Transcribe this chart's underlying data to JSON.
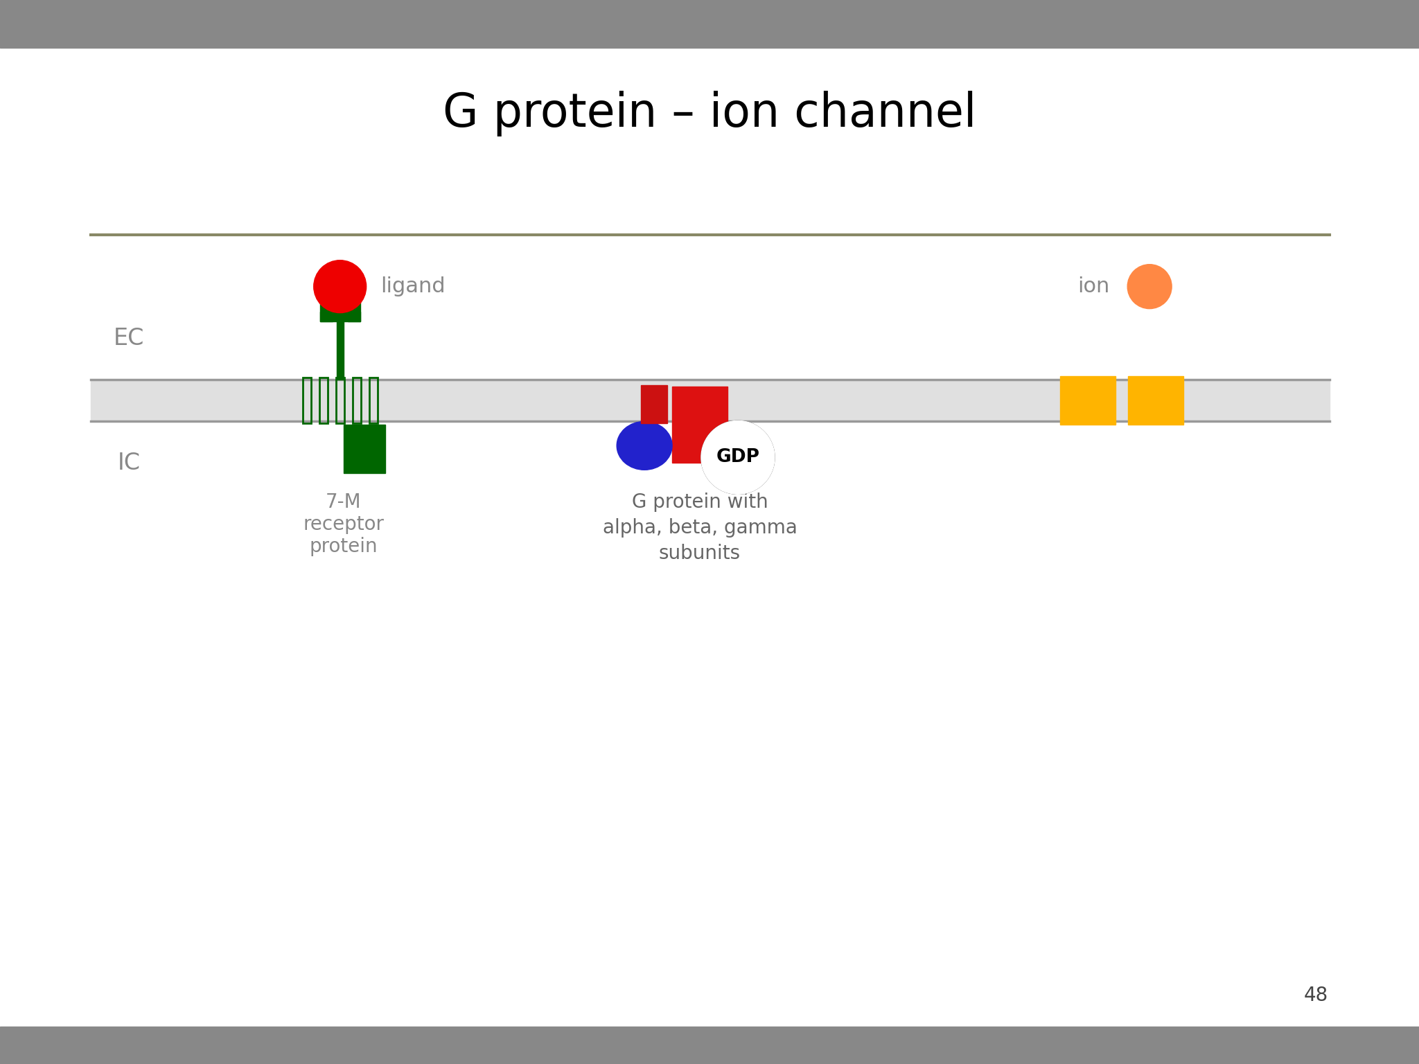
{
  "title": "G protein – ion channel",
  "title_fontsize": 48,
  "bg_color": "#FAFAF5",
  "content_bg": "#FEFEFE",
  "header_color": "#888888",
  "footer_color": "#888888",
  "border_line_color": "#888866",
  "membrane_color": "#E0E0E0",
  "membrane_border_color": "#999999",
  "ec_label": "EC",
  "ic_label": "IC",
  "label_color": "#888888",
  "label_fontsize": 24,
  "ligand_color": "#EE0000",
  "ligand_label": "ligand",
  "ion_color": "#FF8844",
  "ion_label": "ion",
  "receptor_color": "#006600",
  "gdp_label": "GDP",
  "g_protein_label": "G protein with\nalpha, beta, gamma\nsubunits",
  "g_protein_label_color": "#666666",
  "alpha_color": "#DD1111",
  "beta_color": "#2222CC",
  "gamma_color": "#CC1111",
  "channel_color": "#FFB400",
  "page_number": "48",
  "page_num_color": "#444444"
}
